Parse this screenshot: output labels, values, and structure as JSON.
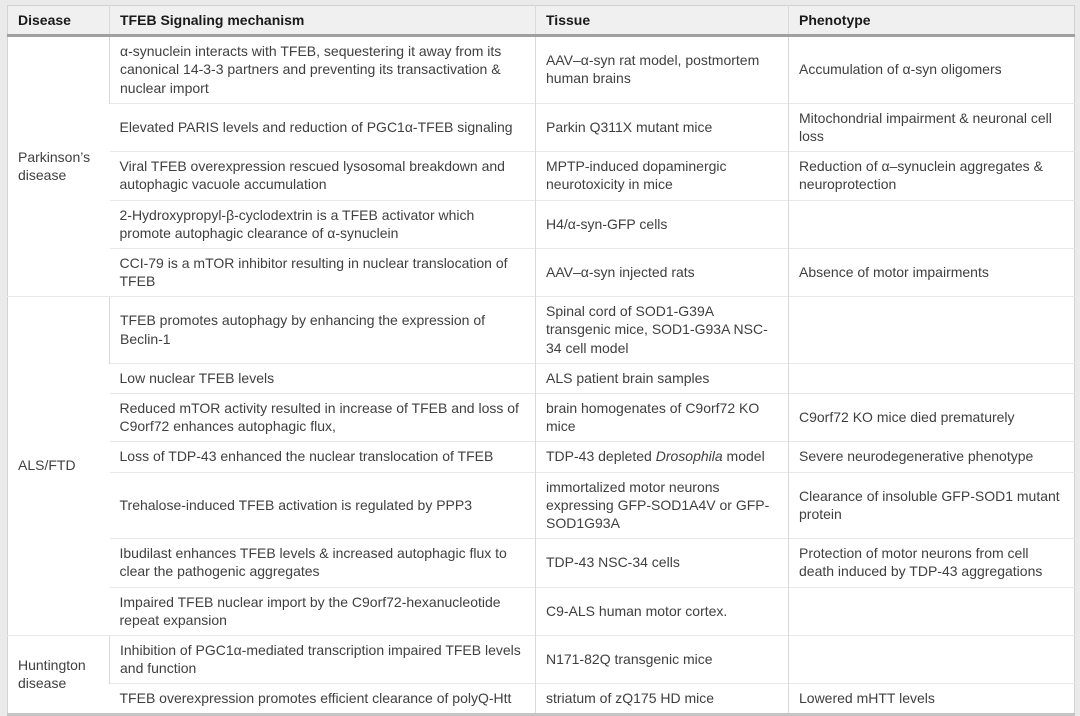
{
  "colors": {
    "page_background": "#eaeaea",
    "header_background": "#f0f0f0",
    "header_text": "#1a1a1a",
    "body_text": "#3f3f3f",
    "vertical_border": "#d9d9d9",
    "horizontal_border": "#e8e8e8",
    "heavy_rule_under_header": "#a0a0a0",
    "bottom_rule": "#c4c4c4"
  },
  "table": {
    "header": [
      "Disease",
      "TFEB Signaling mechanism",
      "Tissue",
      "Phenotype"
    ],
    "sections": [
      {
        "disease": "Parkinson’s disease",
        "rows": [
          {
            "mechanism": "α-synuclein interacts with TFEB, sequestering it away from its canonical 14-3-3 partners and preventing its transactivation & nuclear import",
            "tissue": "AAV–α-syn rat model, postmortem human brains",
            "phenotype": "Accumulation of α-syn oligomers"
          },
          {
            "mechanism": "Elevated PARIS levels and reduction of PGC1α-TFEB signaling",
            "tissue": "Parkin Q311X mutant mice",
            "phenotype": "Mitochondrial impairment & neuronal cell loss"
          },
          {
            "mechanism": "Viral TFEB overexpression rescued lysosomal breakdown and autophagic vacuole accumulation",
            "tissue": "MPTP-induced dopaminergic neurotoxicity in mice",
            "phenotype": "Reduction of α–synuclein aggregates & neuroprotection"
          },
          {
            "mechanism": "2-Hydroxypropyl-β-cyclodextrin is a TFEB activator which promote autophagic clearance of α-synuclein",
            "tissue": "H4/α-syn-GFP cells",
            "phenotype": ""
          },
          {
            "mechanism": "CCI-79 is a mTOR inhibitor resulting in nuclear translocation of TFEB",
            "tissue": "AAV–α-syn injected rats",
            "phenotype": "Absence of motor impairments"
          }
        ]
      },
      {
        "disease": "ALS/FTD",
        "rows": [
          {
            "mechanism": "TFEB promotes autophagy by enhancing the expression of Beclin-1",
            "tissue": "Spinal cord of SOD1-G39A transgenic mice, SOD1-G93A NSC-34 cell model",
            "phenotype": ""
          },
          {
            "mechanism": "Low nuclear TFEB levels",
            "tissue": "ALS patient brain samples",
            "phenotype": ""
          },
          {
            "mechanism": "Reduced mTOR activity resulted in increase of TFEB and loss of C9orf72 enhances autophagic flux,",
            "tissue": "brain homogenates of C9orf72 KO mice",
            "phenotype": "C9orf72 KO mice died prematurely"
          },
          {
            "mechanism": "Loss of TDP-43 enhanced the nuclear translocation of TFEB",
            "tissue": "TDP-43 depleted *Drosophila* model",
            "phenotype": "Severe neurodegenerative phenotype"
          },
          {
            "mechanism": "Trehalose-induced TFEB activation is regulated by PPP3",
            "tissue": "immortalized motor neurons expressing GFP-SOD1A4V or GFP-SOD1G93A",
            "phenotype": "Clearance of insoluble GFP-SOD1 mutant protein"
          },
          {
            "mechanism": "Ibudilast enhances TFEB levels & increased autophagic flux to clear the pathogenic aggregates",
            "tissue": "TDP-43 NSC-34 cells",
            "phenotype": "Protection of motor neurons from cell death induced by TDP-43 aggregations"
          },
          {
            "mechanism": "Impaired TFEB nuclear import by the C9orf72-hexanucleotide repeat expansion",
            "tissue": "C9-ALS human motor cortex.",
            "phenotype": ""
          }
        ]
      },
      {
        "disease": "Huntington disease",
        "rows": [
          {
            "mechanism": "Inhibition of PGC1α-mediated transcription impaired TFEB levels and function",
            "tissue": "N171-82Q transgenic mice",
            "phenotype": ""
          },
          {
            "mechanism": "TFEB overexpression promotes efficient clearance of polyQ-Htt",
            "tissue": "striatum of zQ175 HD mice",
            "phenotype": "Lowered mHTT levels"
          }
        ]
      }
    ]
  }
}
